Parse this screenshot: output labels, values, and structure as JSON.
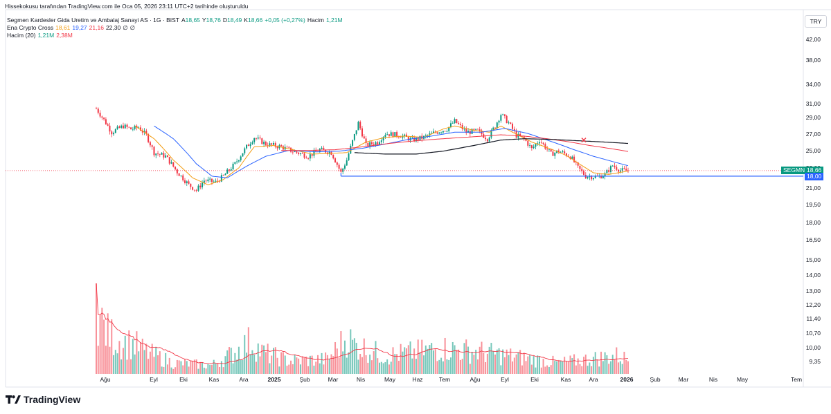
{
  "caption": "Hissekokusu tarafından TradingView.com ile Oca 05, 2026 23:11 UTC+2 tarihinde oluşturuldu",
  "symbol": {
    "name": "Segmen Kardesler Gida Uretim ve Ambalaj Sanayi AS · 1G · BIST",
    "open_label": "A",
    "open": "18,65",
    "high_label": "Y",
    "high": "18,76",
    "low_label": "D",
    "low": "18,49",
    "close_label": "K",
    "close": "18,66",
    "change": "+0,05 (+0,27%)",
    "volume_label": "Hacim",
    "volume": "1,21M"
  },
  "indicator1": {
    "name": "Ena Crypto Cross",
    "v1": "18,61",
    "v2": "19,27",
    "v3": "21,16",
    "v4": "22,30",
    "v5": "∅",
    "v6": "∅"
  },
  "indicator2": {
    "name": "Hacim (20)",
    "v1": "1,21M",
    "v2": "2,38M"
  },
  "currency": "TRY",
  "price_tag": {
    "symbol": "SEGMN",
    "price": "18,66"
  },
  "level_tag": "18,00",
  "logo": "TradingView",
  "colors": {
    "up": "#089981",
    "down": "#f23645",
    "ema_short": "#f39c12",
    "ema_mid": "#2962ff",
    "ema_long": "#f23645",
    "ema_200": "#131722",
    "support": "#2962ff",
    "vol_ma": "#f23645"
  },
  "chart_data": {
    "type": "candlestick",
    "y_ticks": [
      "42,00",
      "38,00",
      "34,00",
      "31,00",
      "29,00",
      "27,00",
      "25,00",
      "23,00",
      "21,00",
      "19,50",
      "18,00",
      "16,50",
      "15,00",
      "14,00",
      "13,00",
      "12,20",
      "11,40",
      "10,70",
      "10,00",
      "9,35"
    ],
    "x_ticks": [
      "Ağu",
      "Eyl",
      "Eki",
      "Kas",
      "Ara",
      "2025",
      "Şub",
      "Mar",
      "Nis",
      "May",
      "Haz",
      "Tem",
      "Ağu",
      "Eyl",
      "Eki",
      "Kas",
      "Ara",
      "2026",
      "Şub",
      "Mar",
      "Nis",
      "May",
      "Tem"
    ],
    "y_scale": "log",
    "ylim": [
      8.6,
      45.5
    ],
    "support_level": 18.0,
    "last_price": 18.66,
    "price_path": [
      [
        0,
        28.0
      ],
      [
        4,
        26.0
      ],
      [
        8,
        24.0
      ],
      [
        14,
        25.0
      ],
      [
        18,
        24.5
      ],
      [
        22,
        24.8
      ],
      [
        26,
        23.5
      ],
      [
        30,
        21.0
      ],
      [
        36,
        20.5
      ],
      [
        42,
        18.5
      ],
      [
        48,
        17.0
      ],
      [
        52,
        16.4
      ],
      [
        56,
        17.5
      ],
      [
        62,
        17.3
      ],
      [
        66,
        18.0
      ],
      [
        72,
        19.5
      ],
      [
        78,
        21.8
      ],
      [
        82,
        23.2
      ],
      [
        88,
        22.2
      ],
      [
        96,
        21.8
      ],
      [
        102,
        21.2
      ],
      [
        110,
        20.5
      ],
      [
        116,
        21.4
      ],
      [
        122,
        21.0
      ],
      [
        127,
        18.4
      ],
      [
        130,
        20.0
      ],
      [
        134,
        23.5
      ],
      [
        136,
        25.5
      ],
      [
        140,
        22.0
      ],
      [
        146,
        22.5
      ],
      [
        150,
        23.8
      ],
      [
        158,
        23.5
      ],
      [
        164,
        22.8
      ],
      [
        170,
        23.2
      ],
      [
        176,
        24.0
      ],
      [
        182,
        24.5
      ],
      [
        186,
        25.8
      ],
      [
        192,
        24.0
      ],
      [
        198,
        24.2
      ],
      [
        203,
        23.0
      ],
      [
        207,
        25.0
      ],
      [
        210,
        27.0
      ],
      [
        214,
        25.5
      ],
      [
        218,
        23.5
      ],
      [
        222,
        23.0
      ],
      [
        226,
        21.5
      ],
      [
        230,
        22.8
      ],
      [
        236,
        20.8
      ],
      [
        240,
        21.2
      ],
      [
        246,
        20.5
      ],
      [
        250,
        19.0
      ],
      [
        254,
        18.0
      ],
      [
        260,
        17.9
      ],
      [
        264,
        18.2
      ],
      [
        268,
        19.3
      ],
      [
        272,
        18.7
      ],
      [
        276,
        18.66
      ]
    ],
    "ema_short": [
      [
        20,
        25.0
      ],
      [
        30,
        23.0
      ],
      [
        40,
        20.0
      ],
      [
        50,
        17.8
      ],
      [
        58,
        17.0
      ],
      [
        66,
        17.6
      ],
      [
        74,
        19.0
      ],
      [
        82,
        21.8
      ],
      [
        92,
        22.0
      ],
      [
        102,
        21.4
      ],
      [
        112,
        20.8
      ],
      [
        122,
        20.9
      ],
      [
        130,
        21.0
      ],
      [
        140,
        22.5
      ],
      [
        150,
        23.2
      ],
      [
        160,
        23.4
      ],
      [
        170,
        23.2
      ],
      [
        180,
        24.5
      ],
      [
        186,
        25.0
      ],
      [
        196,
        24.3
      ],
      [
        204,
        24.0
      ],
      [
        210,
        25.0
      ],
      [
        216,
        24.0
      ],
      [
        226,
        22.5
      ],
      [
        236,
        21.5
      ],
      [
        244,
        20.6
      ],
      [
        250,
        19.6
      ],
      [
        258,
        18.4
      ],
      [
        266,
        18.2
      ],
      [
        276,
        18.61
      ]
    ],
    "ema_mid": [
      [
        30,
        25.0
      ],
      [
        40,
        23.0
      ],
      [
        52,
        19.5
      ],
      [
        60,
        18.0
      ],
      [
        68,
        17.8
      ],
      [
        78,
        19.2
      ],
      [
        88,
        20.5
      ],
      [
        100,
        21.3
      ],
      [
        114,
        21.1
      ],
      [
        126,
        21.2
      ],
      [
        138,
        21.6
      ],
      [
        150,
        22.2
      ],
      [
        162,
        22.9
      ],
      [
        174,
        23.4
      ],
      [
        186,
        24.0
      ],
      [
        200,
        24.0
      ],
      [
        212,
        24.6
      ],
      [
        224,
        23.8
      ],
      [
        236,
        22.6
      ],
      [
        248,
        21.4
      ],
      [
        258,
        20.5
      ],
      [
        268,
        19.8
      ],
      [
        276,
        19.27
      ]
    ],
    "ema_long": [
      [
        96,
        21.3
      ],
      [
        110,
        21.3
      ],
      [
        124,
        21.4
      ],
      [
        138,
        21.8
      ],
      [
        152,
        22.3
      ],
      [
        166,
        22.7
      ],
      [
        180,
        23.0
      ],
      [
        196,
        23.3
      ],
      [
        210,
        23.6
      ],
      [
        222,
        23.4
      ],
      [
        234,
        23.0
      ],
      [
        246,
        22.5
      ],
      [
        256,
        22.0
      ],
      [
        266,
        21.6
      ],
      [
        276,
        21.16
      ]
    ],
    "ema_200": [
      [
        134,
        21.0
      ],
      [
        150,
        20.8
      ],
      [
        166,
        20.8
      ],
      [
        180,
        21.2
      ],
      [
        196,
        22.0
      ],
      [
        210,
        22.8
      ],
      [
        222,
        23.0
      ],
      [
        236,
        22.9
      ],
      [
        250,
        22.7
      ],
      [
        264,
        22.5
      ],
      [
        276,
        22.3
      ]
    ],
    "volume_profile": [
      [
        0,
        1.0
      ],
      [
        2,
        0.75
      ],
      [
        6,
        0.55
      ],
      [
        12,
        0.45
      ],
      [
        20,
        0.4
      ],
      [
        26,
        0.3
      ],
      [
        40,
        0.15
      ],
      [
        60,
        0.12
      ],
      [
        72,
        0.3
      ],
      [
        80,
        0.45
      ],
      [
        86,
        0.3
      ],
      [
        100,
        0.18
      ],
      [
        120,
        0.2
      ],
      [
        130,
        0.5
      ],
      [
        134,
        0.4
      ],
      [
        150,
        0.25
      ],
      [
        180,
        0.35
      ],
      [
        200,
        0.3
      ],
      [
        240,
        0.15
      ],
      [
        270,
        0.25
      ],
      [
        276,
        0.2
      ]
    ],
    "bar_count": 277
  }
}
